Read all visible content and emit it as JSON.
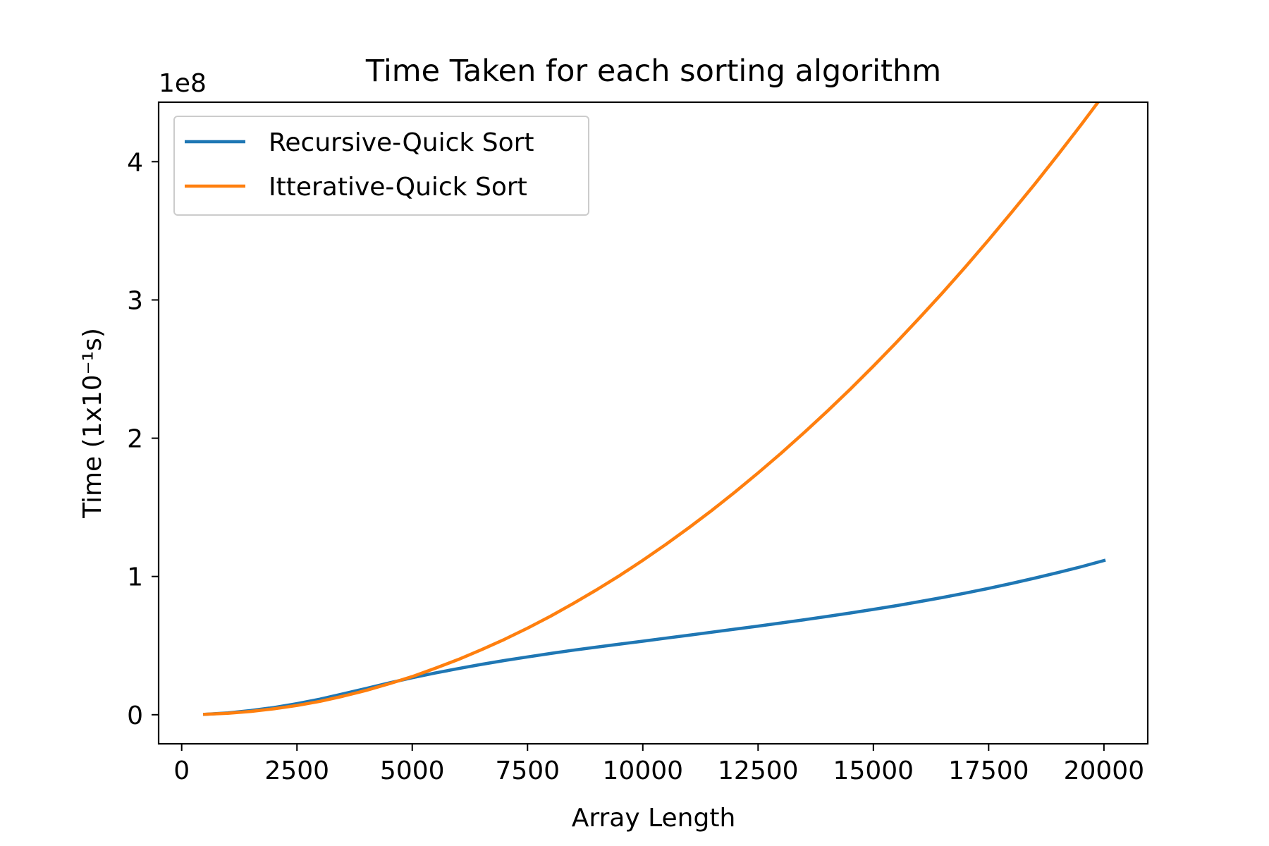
{
  "chart_data": {
    "type": "line",
    "title": "Time Taken for each sorting algorithm",
    "xlabel": "Array Length",
    "ylabel": "Time (1x10⁻¹s)",
    "y_offset_label": "1e8",
    "xlim": [
      -500,
      20950
    ],
    "ylim": [
      -0.21,
      4.43
    ],
    "y_multiplier": 100000000,
    "x_ticks": [
      0,
      2500,
      5000,
      7500,
      10000,
      12500,
      15000,
      17500,
      20000
    ],
    "x_tick_labels": [
      "0",
      "2500",
      "5000",
      "7500",
      "10000",
      "12500",
      "15000",
      "17500",
      "20000"
    ],
    "y_ticks": [
      0,
      1,
      2,
      3,
      4
    ],
    "y_tick_labels": [
      "0",
      "1",
      "2",
      "3",
      "4"
    ],
    "legend_position": "upper-left",
    "grid": false,
    "x": [
      500,
      1000,
      1500,
      2000,
      2500,
      3000,
      3500,
      4000,
      4500,
      5000,
      5500,
      6000,
      6500,
      7000,
      7500,
      8000,
      8500,
      9000,
      9500,
      10000,
      10500,
      11000,
      11500,
      12000,
      12500,
      13000,
      13500,
      14000,
      14500,
      15000,
      15500,
      16000,
      16500,
      17000,
      17500,
      18000,
      18500,
      19000,
      19500,
      20000
    ],
    "series": [
      {
        "name": "Recursive-Quick Sort",
        "color": "#1f77b4",
        "values": [
          0.003,
          0.013,
          0.03,
          0.052,
          0.08,
          0.113,
          0.151,
          0.19,
          0.23,
          0.268,
          0.302,
          0.334,
          0.364,
          0.392,
          0.418,
          0.443,
          0.467,
          0.489,
          0.511,
          0.532,
          0.554,
          0.575,
          0.597,
          0.619,
          0.641,
          0.664,
          0.687,
          0.711,
          0.736,
          0.762,
          0.789,
          0.818,
          0.848,
          0.88,
          0.914,
          0.95,
          0.988,
          1.028,
          1.07,
          1.115
        ]
      },
      {
        "name": "Itterative-Quick Sort",
        "color": "#ff7f0e",
        "values": [
          0.003,
          0.011,
          0.024,
          0.043,
          0.067,
          0.097,
          0.134,
          0.176,
          0.224,
          0.276,
          0.336,
          0.4,
          0.47,
          0.545,
          0.626,
          0.713,
          0.806,
          0.904,
          1.007,
          1.117,
          1.232,
          1.353,
          1.479,
          1.611,
          1.749,
          1.892,
          2.041,
          2.195,
          2.355,
          2.521,
          2.693,
          2.87,
          3.052,
          3.24,
          3.434,
          3.634,
          3.838,
          4.049,
          4.265,
          4.487
        ]
      }
    ]
  }
}
